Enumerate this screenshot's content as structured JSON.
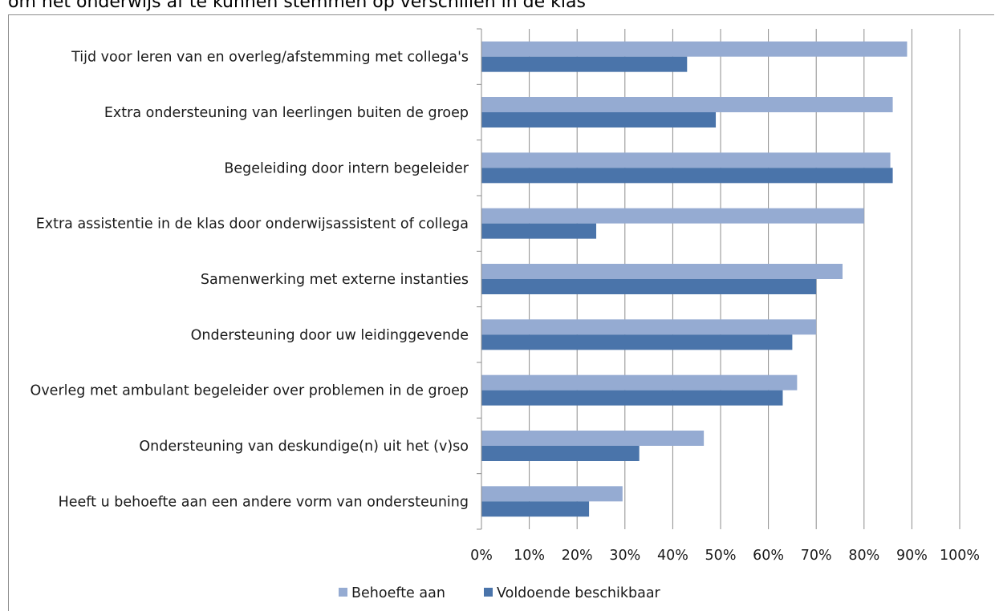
{
  "title_fragment": "om het onderwijs af te kunnen stemmen op verschillen in de klas",
  "chart_data": {
    "type": "bar",
    "orientation": "horizontal",
    "title": "",
    "xlabel": "",
    "ylabel": "",
    "xlim": [
      0,
      100
    ],
    "tick_labels": [
      "0%",
      "10%",
      "20%",
      "30%",
      "40%",
      "50%",
      "60%",
      "70%",
      "80%",
      "90%",
      "100%"
    ],
    "grid": "vertical",
    "legend_position": "bottom",
    "categories": [
      "Tijd voor leren van en overleg/afstemming met collega's",
      "Extra ondersteuning van leerlingen buiten de groep",
      "Begeleiding door intern begeleider",
      "Extra assistentie in de klas door onderwijsassistent of collega",
      "Samenwerking met externe instanties",
      "Ondersteuning door uw leidinggevende",
      "Overleg met ambulant begeleider over problemen in de groep",
      "Ondersteuning van deskundige(n) uit het (v)so",
      "Heeft u behoefte aan een andere vorm van ondersteuning"
    ],
    "series": [
      {
        "name": "Behoefte aan",
        "color": "#95abd2",
        "values": [
          89,
          86,
          85.5,
          80,
          75.5,
          70,
          66,
          46.5,
          29.5
        ]
      },
      {
        "name": "Voldoende beschikbaar",
        "color": "#4a74aa",
        "values": [
          43,
          49,
          86,
          24,
          70,
          65,
          63,
          33,
          22.5
        ]
      }
    ]
  }
}
